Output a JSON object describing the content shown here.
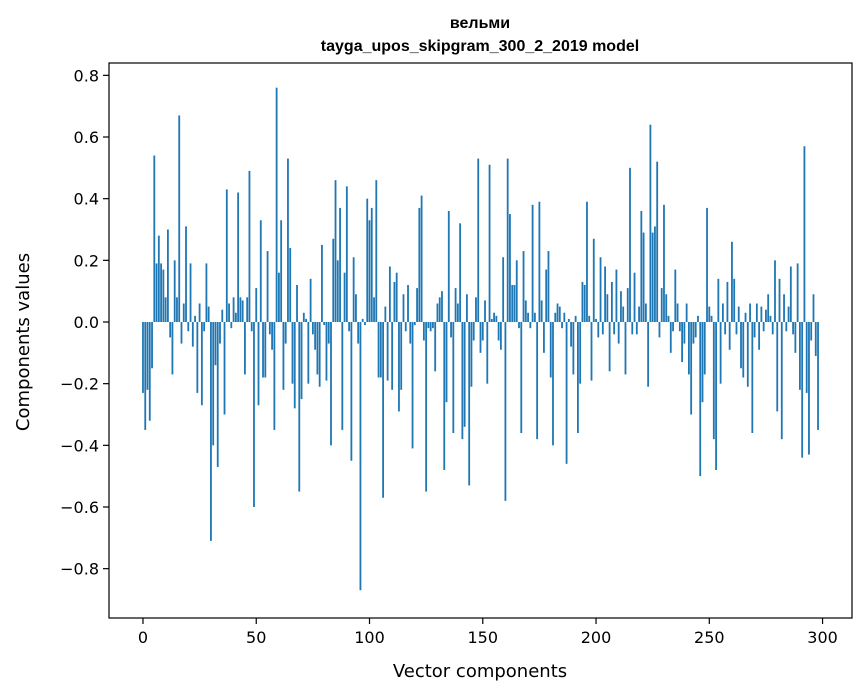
{
  "chart_data": {
    "type": "bar",
    "title": "вельми",
    "subtitle": "tayga_upos_skipgram_300_2_2019 model",
    "xlabel": "Vector components",
    "ylabel": "Components values",
    "xlim": [
      -15,
      313
    ],
    "ylim": [
      -0.96,
      0.84
    ],
    "xticks": [
      0,
      50,
      100,
      150,
      200,
      250,
      300
    ],
    "xtick_labels": [
      "0",
      "50",
      "100",
      "150",
      "200",
      "250",
      "300"
    ],
    "yticks": [
      0.8,
      0.6,
      0.4,
      0.2,
      0.0,
      -0.2,
      -0.4,
      -0.6,
      -0.8
    ],
    "ytick_labels": [
      "0.8",
      "0.6",
      "0.4",
      "0.2",
      "0.0",
      "−0.2",
      "−0.4",
      "−0.6",
      "−0.8"
    ],
    "bar_color": "#1f77b4",
    "grid": false,
    "x": "0..299",
    "values": [
      -0.23,
      -0.35,
      -0.22,
      -0.32,
      -0.15,
      0.54,
      0.19,
      0.28,
      0.19,
      0.17,
      0.08,
      0.3,
      -0.05,
      -0.17,
      0.2,
      0.08,
      0.67,
      -0.07,
      0.06,
      0.31,
      -0.03,
      0.19,
      -0.08,
      0.02,
      -0.23,
      0.06,
      -0.27,
      -0.03,
      0.19,
      0.05,
      -0.71,
      -0.4,
      -0.14,
      -0.47,
      -0.07,
      0.04,
      -0.3,
      0.43,
      0.06,
      -0.02,
      0.08,
      0.03,
      0.42,
      0.08,
      0.07,
      -0.17,
      0.08,
      0.49,
      -0.03,
      -0.6,
      0.11,
      -0.27,
      0.33,
      -0.18,
      -0.18,
      0.23,
      -0.04,
      -0.09,
      -0.35,
      0.76,
      0.16,
      0.33,
      -0.22,
      -0.07,
      0.53,
      0.24,
      -0.2,
      -0.28,
      0.12,
      -0.55,
      -0.25,
      0.03,
      0.01,
      -0.2,
      0.14,
      -0.04,
      -0.09,
      -0.17,
      -0.21,
      0.25,
      -0.01,
      -0.19,
      -0.07,
      -0.4,
      0.27,
      0.46,
      0.2,
      0.37,
      -0.35,
      0.16,
      0.44,
      -0.03,
      -0.45,
      0.21,
      0.09,
      -0.07,
      -0.87,
      0.01,
      -0.01,
      0.4,
      0.33,
      0.37,
      0.08,
      0.46,
      -0.18,
      -0.18,
      -0.57,
      0.05,
      -0.19,
      0.18,
      -0.22,
      0.13,
      0.16,
      -0.29,
      -0.22,
      0.09,
      -0.03,
      0.12,
      -0.07,
      -0.41,
      -0.01,
      0.11,
      0.37,
      0.41,
      -0.06,
      -0.55,
      -0.02,
      -0.03,
      -0.02,
      -0.16,
      0.06,
      0.08,
      0.1,
      -0.48,
      -0.26,
      0.36,
      -0.05,
      -0.36,
      0.11,
      0.06,
      0.32,
      -0.38,
      -0.34,
      0.09,
      -0.53,
      -0.21,
      -0.06,
      0.08,
      0.53,
      -0.1,
      -0.06,
      0.07,
      -0.2,
      0.51,
      0.01,
      0.03,
      0.02,
      -0.06,
      -0.09,
      0.21,
      -0.58,
      0.53,
      0.35,
      0.12,
      0.12,
      0.2,
      -0.02,
      -0.36,
      0.23,
      0.07,
      0.03,
      -0.02,
      0.38,
      0.03,
      -0.38,
      0.39,
      0.07,
      -0.1,
      0.17,
      0.23,
      -0.18,
      -0.4,
      0.03,
      0.06,
      0.05,
      -0.02,
      0.03,
      -0.46,
      0.01,
      -0.08,
      -0.17,
      0.02,
      -0.36,
      -0.2,
      0.13,
      0.12,
      0.39,
      0.02,
      -0.19,
      0.27,
      0.01,
      -0.05,
      0.21,
      -0.04,
      0.18,
      0.09,
      -0.16,
      0.13,
      -0.04,
      0.17,
      -0.07,
      0.1,
      0.05,
      -0.17,
      0.11,
      0.5,
      -0.04,
      0.16,
      -0.04,
      0.05,
      0.36,
      0.29,
      0.06,
      -0.21,
      0.64,
      0.29,
      0.31,
      0.52,
      -0.05,
      0.11,
      0.38,
      0.09,
      0.02,
      -0.1,
      -0.03,
      0.17,
      0.06,
      -0.03,
      -0.13,
      -0.07,
      0.06,
      -0.17,
      -0.3,
      -0.07,
      -0.05,
      0.02,
      -0.5,
      -0.26,
      -0.17,
      0.37,
      0.05,
      0.02,
      -0.38,
      -0.48,
      0.14,
      -0.2,
      0.06,
      -0.04,
      0.13,
      -0.09,
      0.26,
      0.14,
      -0.04,
      0.05,
      -0.15,
      -0.18,
      0.03,
      -0.21,
      0.06,
      -0.36,
      -0.05,
      0.06,
      -0.09,
      0.05,
      -0.03,
      0.04,
      0.09,
      0.02,
      -0.04,
      0.2,
      -0.29,
      0.14,
      -0.38,
      0.09,
      -0.03,
      0.05,
      0.18,
      -0.04,
      -0.1,
      0.19,
      -0.22,
      -0.44,
      0.57,
      -0.23,
      -0.43,
      -0.06,
      0.09,
      -0.11,
      -0.35,
      0.0
    ]
  }
}
